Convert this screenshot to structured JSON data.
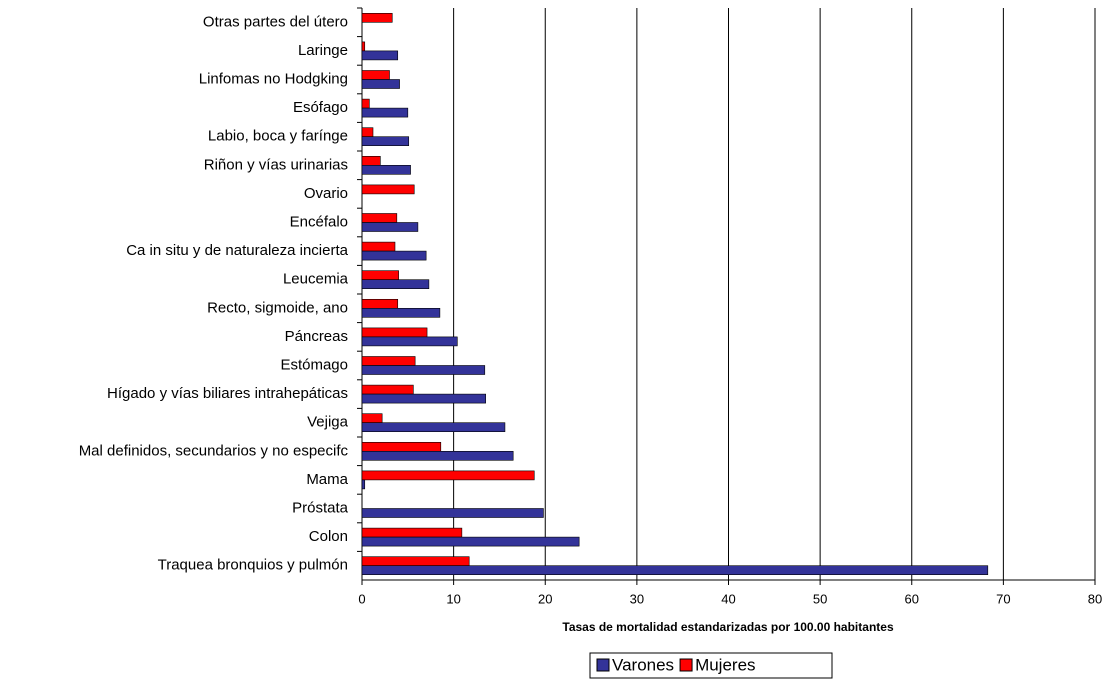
{
  "chart_data": {
    "type": "hbar",
    "xlabel": "Tasas de mortalidad estandarizadas por 100.00 habitantes",
    "categories": [
      "Otras partes del útero",
      "Laringe",
      "Linfomas no Hodgking",
      "Esófago",
      "Labio, boca y farínge",
      "Riñon y vías urinarias",
      "Ovario",
      "Encéfalo",
      "Ca in situ y de naturaleza incierta",
      "Leucemia",
      "Recto, sigmoide, ano",
      "Páncreas",
      "Estómago",
      "Hígado y vías biliares intrahepáticas",
      "Vejiga",
      "Mal definidos, secundarios y no especifc",
      "Mama",
      "Próstata",
      "Colon",
      "Traquea bronquios y pulmón"
    ],
    "series": [
      {
        "name": "Varones",
        "color": "#333399",
        "values": [
          0,
          3.9,
          4.1,
          5.0,
          5.1,
          5.3,
          0,
          6.1,
          7.0,
          7.3,
          8.5,
          10.4,
          13.4,
          13.5,
          15.6,
          16.5,
          0.3,
          19.8,
          23.7,
          68.3
        ]
      },
      {
        "name": "Mujeres",
        "color": "#ff0000",
        "values": [
          3.3,
          0.3,
          3.0,
          0.8,
          1.2,
          2.0,
          5.7,
          3.8,
          3.6,
          4.0,
          3.9,
          7.1,
          5.8,
          5.6,
          2.2,
          8.6,
          18.8,
          0,
          10.9,
          11.7
        ]
      }
    ],
    "xlim": [
      0,
      80
    ],
    "xticks": [
      0,
      10,
      20,
      30,
      40,
      50,
      60,
      70,
      80
    ],
    "grid": true,
    "legend": "bottom"
  }
}
